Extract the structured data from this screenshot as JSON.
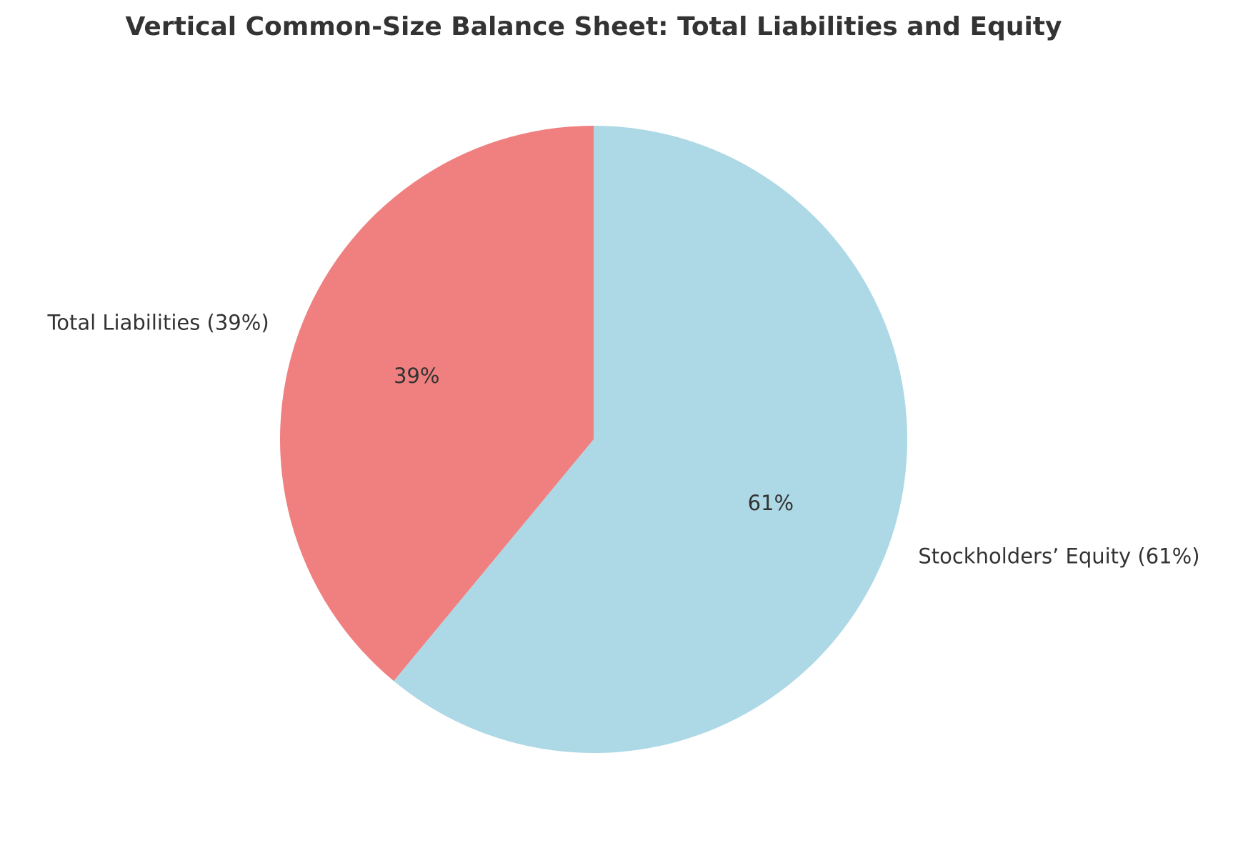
{
  "chart_data": {
    "type": "pie",
    "title": "Vertical Common-Size Balance Sheet: Total Liabilities and Equity",
    "slices": [
      {
        "label": "Total Liabilities (39%)",
        "value": 39,
        "pct_label": "39%",
        "color": "#F08080"
      },
      {
        "label": "Stockholders’ Equity (61%)",
        "value": 61,
        "pct_label": "61%",
        "color": "#ADD8E6"
      }
    ],
    "start_angle_deg": 90,
    "direction": "counterclockwise"
  }
}
